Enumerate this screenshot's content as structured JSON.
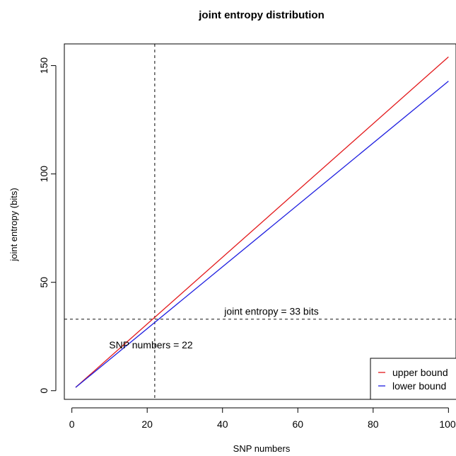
{
  "chart_data": {
    "type": "line",
    "title": "joint entropy distribution",
    "xlabel": "SNP numbers",
    "ylabel": "joint entropy (bits)",
    "xlim": [
      -2,
      102
    ],
    "ylim": [
      -4,
      160
    ],
    "xticks": [
      0,
      20,
      40,
      60,
      80,
      100
    ],
    "yticks": [
      0,
      50,
      100,
      150
    ],
    "grid": false,
    "legend_position": "bottom-right",
    "series": [
      {
        "name": "upper bound",
        "color": "#e31a1c",
        "x": [
          1,
          100
        ],
        "y": [
          1.5,
          154
        ]
      },
      {
        "name": "lower bound",
        "color": "#1f1fe0",
        "x": [
          1,
          100
        ],
        "y": [
          1.5,
          142.8
        ]
      }
    ],
    "reference_lines": [
      {
        "orientation": "vertical",
        "value": 22
      },
      {
        "orientation": "horizontal",
        "value": 33
      }
    ],
    "annotations": [
      {
        "text": "joint entropy = 33 bits",
        "x": 53,
        "y": 35
      },
      {
        "text": "SNP numbers = 22",
        "x": 21,
        "y": 19.5
      }
    ]
  }
}
